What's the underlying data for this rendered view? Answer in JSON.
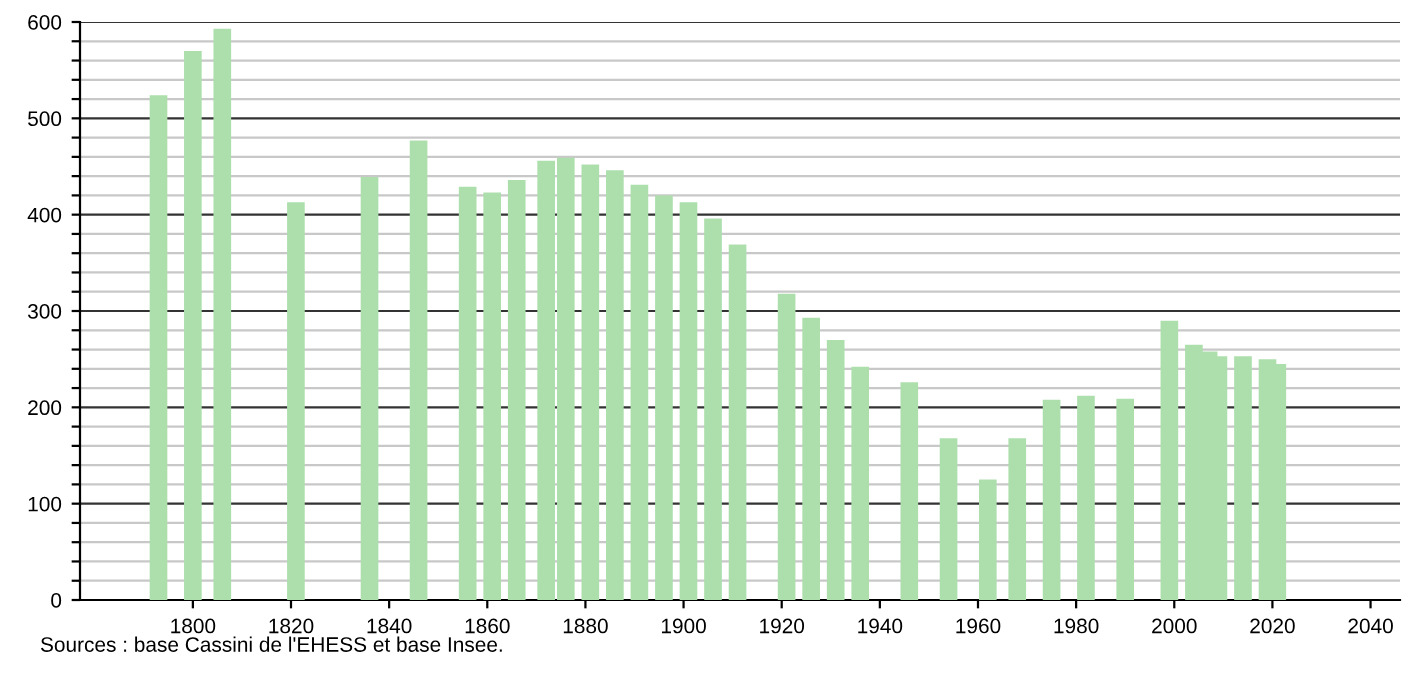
{
  "chart_data": {
    "type": "bar",
    "x": [
      1793,
      1800,
      1806,
      1821,
      1836,
      1846,
      1856,
      1861,
      1866,
      1872,
      1876,
      1881,
      1886,
      1891,
      1896,
      1901,
      1906,
      1911,
      1921,
      1926,
      1931,
      1936,
      1946,
      1954,
      1962,
      1968,
      1975,
      1982,
      1990,
      1999,
      2004,
      2007,
      2009,
      2014,
      2019,
      2021
    ],
    "values": [
      524,
      570,
      593,
      413,
      439,
      477,
      429,
      423,
      436,
      456,
      459,
      452,
      446,
      431,
      420,
      413,
      396,
      369,
      318,
      293,
      270,
      242,
      226,
      168,
      125,
      168,
      208,
      212,
      209,
      290,
      265,
      258,
      253,
      253,
      250,
      245
    ],
    "color": "#addfad",
    "xlim": [
      1777,
      2046
    ],
    "xticks": [
      1800,
      1820,
      1840,
      1860,
      1880,
      1900,
      1920,
      1940,
      1960,
      1980,
      2000,
      2020,
      2040
    ],
    "ylim": [
      0,
      600
    ],
    "yticks": [
      0,
      {
        "value": 20,
        "label": null
      },
      {
        "value": 40,
        "label": null
      },
      {
        "value": 60,
        "label": null
      },
      {
        "value": 80,
        "label": null
      },
      100,
      {
        "value": 120,
        "label": null
      },
      {
        "value": 140,
        "label": null
      },
      {
        "value": 160,
        "label": null
      },
      {
        "value": 180,
        "label": null
      },
      200,
      {
        "value": 220,
        "label": null
      },
      {
        "value": 240,
        "label": null
      },
      {
        "value": 260,
        "label": null
      },
      {
        "value": 280,
        "label": null
      },
      300,
      {
        "value": 320,
        "label": null
      },
      {
        "value": 340,
        "label": null
      },
      {
        "value": 360,
        "label": null
      },
      {
        "value": 380,
        "label": null
      },
      400,
      {
        "value": 420,
        "label": null
      },
      {
        "value": 440,
        "label": null
      },
      {
        "value": 460,
        "label": null
      },
      {
        "value": 480,
        "label": null
      },
      500,
      {
        "value": 520,
        "label": null
      },
      {
        "value": 540,
        "label": null
      },
      {
        "value": 560,
        "label": null
      },
      {
        "value": 580,
        "label": null
      },
      600
    ],
    "grid": "y",
    "annotations": [
      "Sources : base Cassini de l'EHESS et base Insee."
    ]
  }
}
